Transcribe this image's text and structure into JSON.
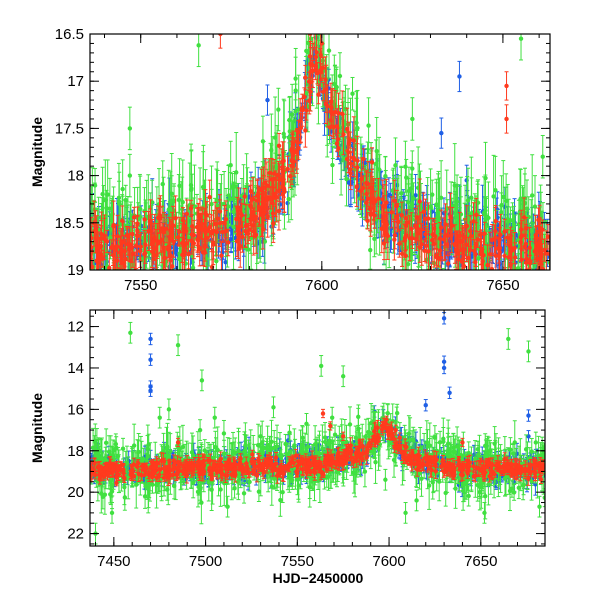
{
  "colors": {
    "blue": "#1f5fe6",
    "green": "#40e040",
    "red": "#ff3a1e"
  },
  "chart_data": [
    {
      "type": "scatter",
      "title": "",
      "xlabel": "",
      "ylabel": "Magnitude",
      "xlim": [
        7536,
        7663
      ],
      "ylim": [
        19.0,
        16.5
      ],
      "y_inverted": true,
      "x_ticks": [
        7550,
        7600,
        7650
      ],
      "x_tick_labels": [
        "7550",
        "7600",
        "7650"
      ],
      "y_ticks": [
        16.5,
        17,
        17.5,
        18,
        18.5,
        19
      ],
      "y_tick_labels": [
        "16.5",
        "17",
        "17.5",
        "18",
        "18.5",
        "19"
      ],
      "grid": false,
      "legend": "none",
      "series": [
        {
          "color": "blue",
          "shape": [
            [
              7536,
              18.75
            ],
            [
              7560,
              18.65
            ],
            [
              7582,
              18.45
            ],
            [
              7590,
              18.1
            ],
            [
              7595,
              17.3
            ],
            [
              7598,
              16.75
            ],
            [
              7602,
              17.35
            ],
            [
              7608,
              17.85
            ],
            [
              7614,
              18.2
            ],
            [
              7622,
              18.5
            ],
            [
              7635,
              18.65
            ],
            [
              7663,
              18.72
            ]
          ],
          "scatter": 0.22,
          "outliers": [
            [
              7638,
              16.95
            ],
            [
              7633,
              17.55
            ],
            [
              7585,
              17.2
            ],
            [
              7604,
              17.55
            ],
            [
              7640,
              18.05
            ]
          ]
        },
        {
          "color": "green",
          "shape": [
            [
              7536,
              18.7
            ],
            [
              7560,
              18.6
            ],
            [
              7582,
              18.3
            ],
            [
              7590,
              17.8
            ],
            [
              7595,
              17.1
            ],
            [
              7598,
              16.6
            ],
            [
              7602,
              17.2
            ],
            [
              7608,
              17.7
            ],
            [
              7614,
              18.1
            ],
            [
              7622,
              18.45
            ],
            [
              7635,
              18.6
            ],
            [
              7663,
              18.7
            ]
          ],
          "scatter": 0.35,
          "outliers": [
            [
              7566,
              16.62
            ],
            [
              7597,
              16.55
            ],
            [
              7655,
              16.55
            ],
            [
              7547,
              17.5
            ],
            [
              7604,
              17.1
            ],
            [
              7588,
              17.3
            ],
            [
              7547,
              18.0
            ],
            [
              7625,
              17.4
            ],
            [
              7661,
              17.8
            ]
          ]
        },
        {
          "color": "red",
          "shape": [
            [
              7536,
              18.78
            ],
            [
              7560,
              18.68
            ],
            [
              7582,
              18.42
            ],
            [
              7590,
              18.05
            ],
            [
              7595,
              17.35
            ],
            [
              7598,
              16.65
            ],
            [
              7602,
              17.3
            ],
            [
              7608,
              17.85
            ],
            [
              7614,
              18.3
            ],
            [
              7622,
              18.6
            ],
            [
              7635,
              18.72
            ],
            [
              7663,
              18.76
            ]
          ],
          "scatter": 0.2,
          "outliers": [
            [
              7572,
              16.5
            ],
            [
              7651,
              17.05
            ],
            [
              7651,
              17.4
            ],
            [
              7588,
              18.0
            ],
            [
              7600,
              16.6
            ]
          ]
        }
      ]
    },
    {
      "type": "scatter",
      "title": "",
      "xlabel": "HJD−2450000",
      "ylabel": "Magnitude",
      "xlim": [
        7437,
        7685
      ],
      "ylim": [
        22.6,
        11.2
      ],
      "y_inverted": true,
      "x_ticks": [
        7450,
        7500,
        7550,
        7600,
        7650
      ],
      "x_tick_labels": [
        "7450",
        "7500",
        "7550",
        "7600",
        "7650"
      ],
      "y_ticks": [
        12,
        14,
        16,
        18,
        20,
        22
      ],
      "y_tick_labels": [
        "12",
        "14",
        "16",
        "18",
        "20",
        "22"
      ],
      "grid": false,
      "legend": "none",
      "series": [
        {
          "color": "blue",
          "shape": [
            [
              7440,
              18.9
            ],
            [
              7500,
              18.8
            ],
            [
              7560,
              18.6
            ],
            [
              7588,
              18.0
            ],
            [
              7598,
              16.9
            ],
            [
              7604,
              17.6
            ],
            [
              7614,
              18.3
            ],
            [
              7635,
              18.8
            ],
            [
              7685,
              18.9
            ]
          ],
          "scatter": 0.45,
          "outliers": [
            [
              7470,
              12.6
            ],
            [
              7470,
              13.6
            ],
            [
              7470,
              14.9
            ],
            [
              7470,
              15.1
            ],
            [
              7630,
              11.6
            ],
            [
              7630,
              13.7
            ],
            [
              7630,
              14.0
            ],
            [
              7633,
              15.2
            ],
            [
              7620,
              15.8
            ],
            [
              7676,
              16.3
            ],
            [
              7676,
              17.3
            ],
            [
              7592,
              16.1
            ],
            [
              7545,
              17.5
            ]
          ]
        },
        {
          "color": "green",
          "shape": [
            [
              7440,
              18.9
            ],
            [
              7500,
              18.8
            ],
            [
              7560,
              18.6
            ],
            [
              7588,
              17.9
            ],
            [
              7598,
              16.8
            ],
            [
              7604,
              17.5
            ],
            [
              7614,
              18.3
            ],
            [
              7635,
              18.8
            ],
            [
              7685,
              18.9
            ]
          ],
          "scatter": 0.9,
          "outliers": [
            [
              7440,
              22.0
            ],
            [
              7449,
              21.0
            ],
            [
              7455,
              17.9
            ],
            [
              7459,
              12.3
            ],
            [
              7469,
              17.7
            ],
            [
              7475,
              16.4
            ],
            [
              7480,
              16.0
            ],
            [
              7485,
              12.9
            ],
            [
              7492,
              19.3
            ],
            [
              7494,
              19.0
            ],
            [
              7497,
              17.0
            ],
            [
              7498,
              14.6
            ],
            [
              7505,
              16.4
            ],
            [
              7530,
              17.3
            ],
            [
              7537,
              15.9
            ],
            [
              7555,
              16.7
            ],
            [
              7563,
              13.9
            ],
            [
              7569,
              16.4
            ],
            [
              7575,
              14.4
            ],
            [
              7598,
              19.4
            ],
            [
              7609,
              21.0
            ],
            [
              7615,
              20.4
            ],
            [
              7652,
              21.0
            ],
            [
              7655,
              18.0
            ],
            [
              7665,
              12.6
            ],
            [
              7676,
              13.2
            ],
            [
              7680,
              17.6
            ],
            [
              7682,
              20.7
            ],
            [
              7512,
              20.7
            ],
            [
              7542,
              20.0
            ]
          ]
        },
        {
          "color": "red",
          "shape": [
            [
              7440,
              18.95
            ],
            [
              7500,
              18.85
            ],
            [
              7560,
              18.7
            ],
            [
              7588,
              18.0
            ],
            [
              7598,
              16.7
            ],
            [
              7604,
              17.6
            ],
            [
              7614,
              18.4
            ],
            [
              7635,
              18.85
            ],
            [
              7685,
              18.9
            ]
          ],
          "scatter": 0.3,
          "outliers": [
            [
              7564,
              16.2
            ],
            [
              7568,
              16.8
            ],
            [
              7575,
              17.3
            ],
            [
              7640,
              17.6
            ],
            [
              7485,
              17.6
            ]
          ]
        }
      ]
    }
  ]
}
